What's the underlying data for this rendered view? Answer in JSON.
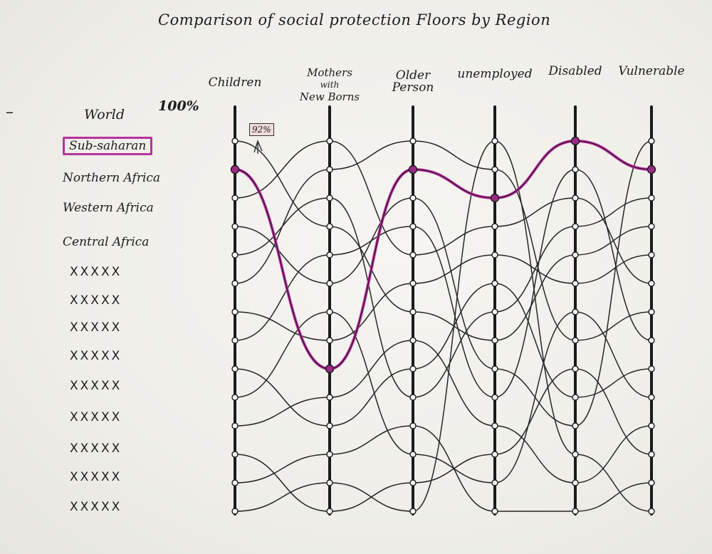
{
  "title": "Comparison of social protection Floors by Region",
  "dash": "–",
  "pct_label": "100%",
  "annotation": "92%",
  "chart_data": {
    "type": "parallel-coordinates",
    "title": "Comparison of social protection Floors by Region",
    "axis_top_label": "100%",
    "axes": [
      "Children",
      "Mothers with New Borns",
      "Older Person",
      "unemployed",
      "Disabled",
      "Vulnerable"
    ],
    "axis_label_lines": [
      [
        "Children"
      ],
      [
        "Mothers",
        "with",
        "New Borns"
      ],
      [
        "Older",
        "Person"
      ],
      [
        "unemployed"
      ],
      [
        "Disabled"
      ],
      [
        "Vulnerable"
      ]
    ],
    "rows": [
      "World",
      "Sub-saharan",
      "Northern Africa",
      "Western Africa",
      "Central Africa",
      "XXXXX",
      "XXXXX",
      "XXXXX",
      "XXXXX",
      "XXXXX",
      "XXXXX",
      "XXXXX",
      "XXXXX",
      "XXXXX"
    ],
    "highlighted_row": "Sub-saharan",
    "highlight_color": "#b8329e",
    "highlighted_path_ranks": [
      1,
      8,
      1,
      2,
      0,
      1
    ],
    "annotation": {
      "text": "92%",
      "axis": "Children",
      "series": "Sub-saharan"
    },
    "grid": false
  }
}
